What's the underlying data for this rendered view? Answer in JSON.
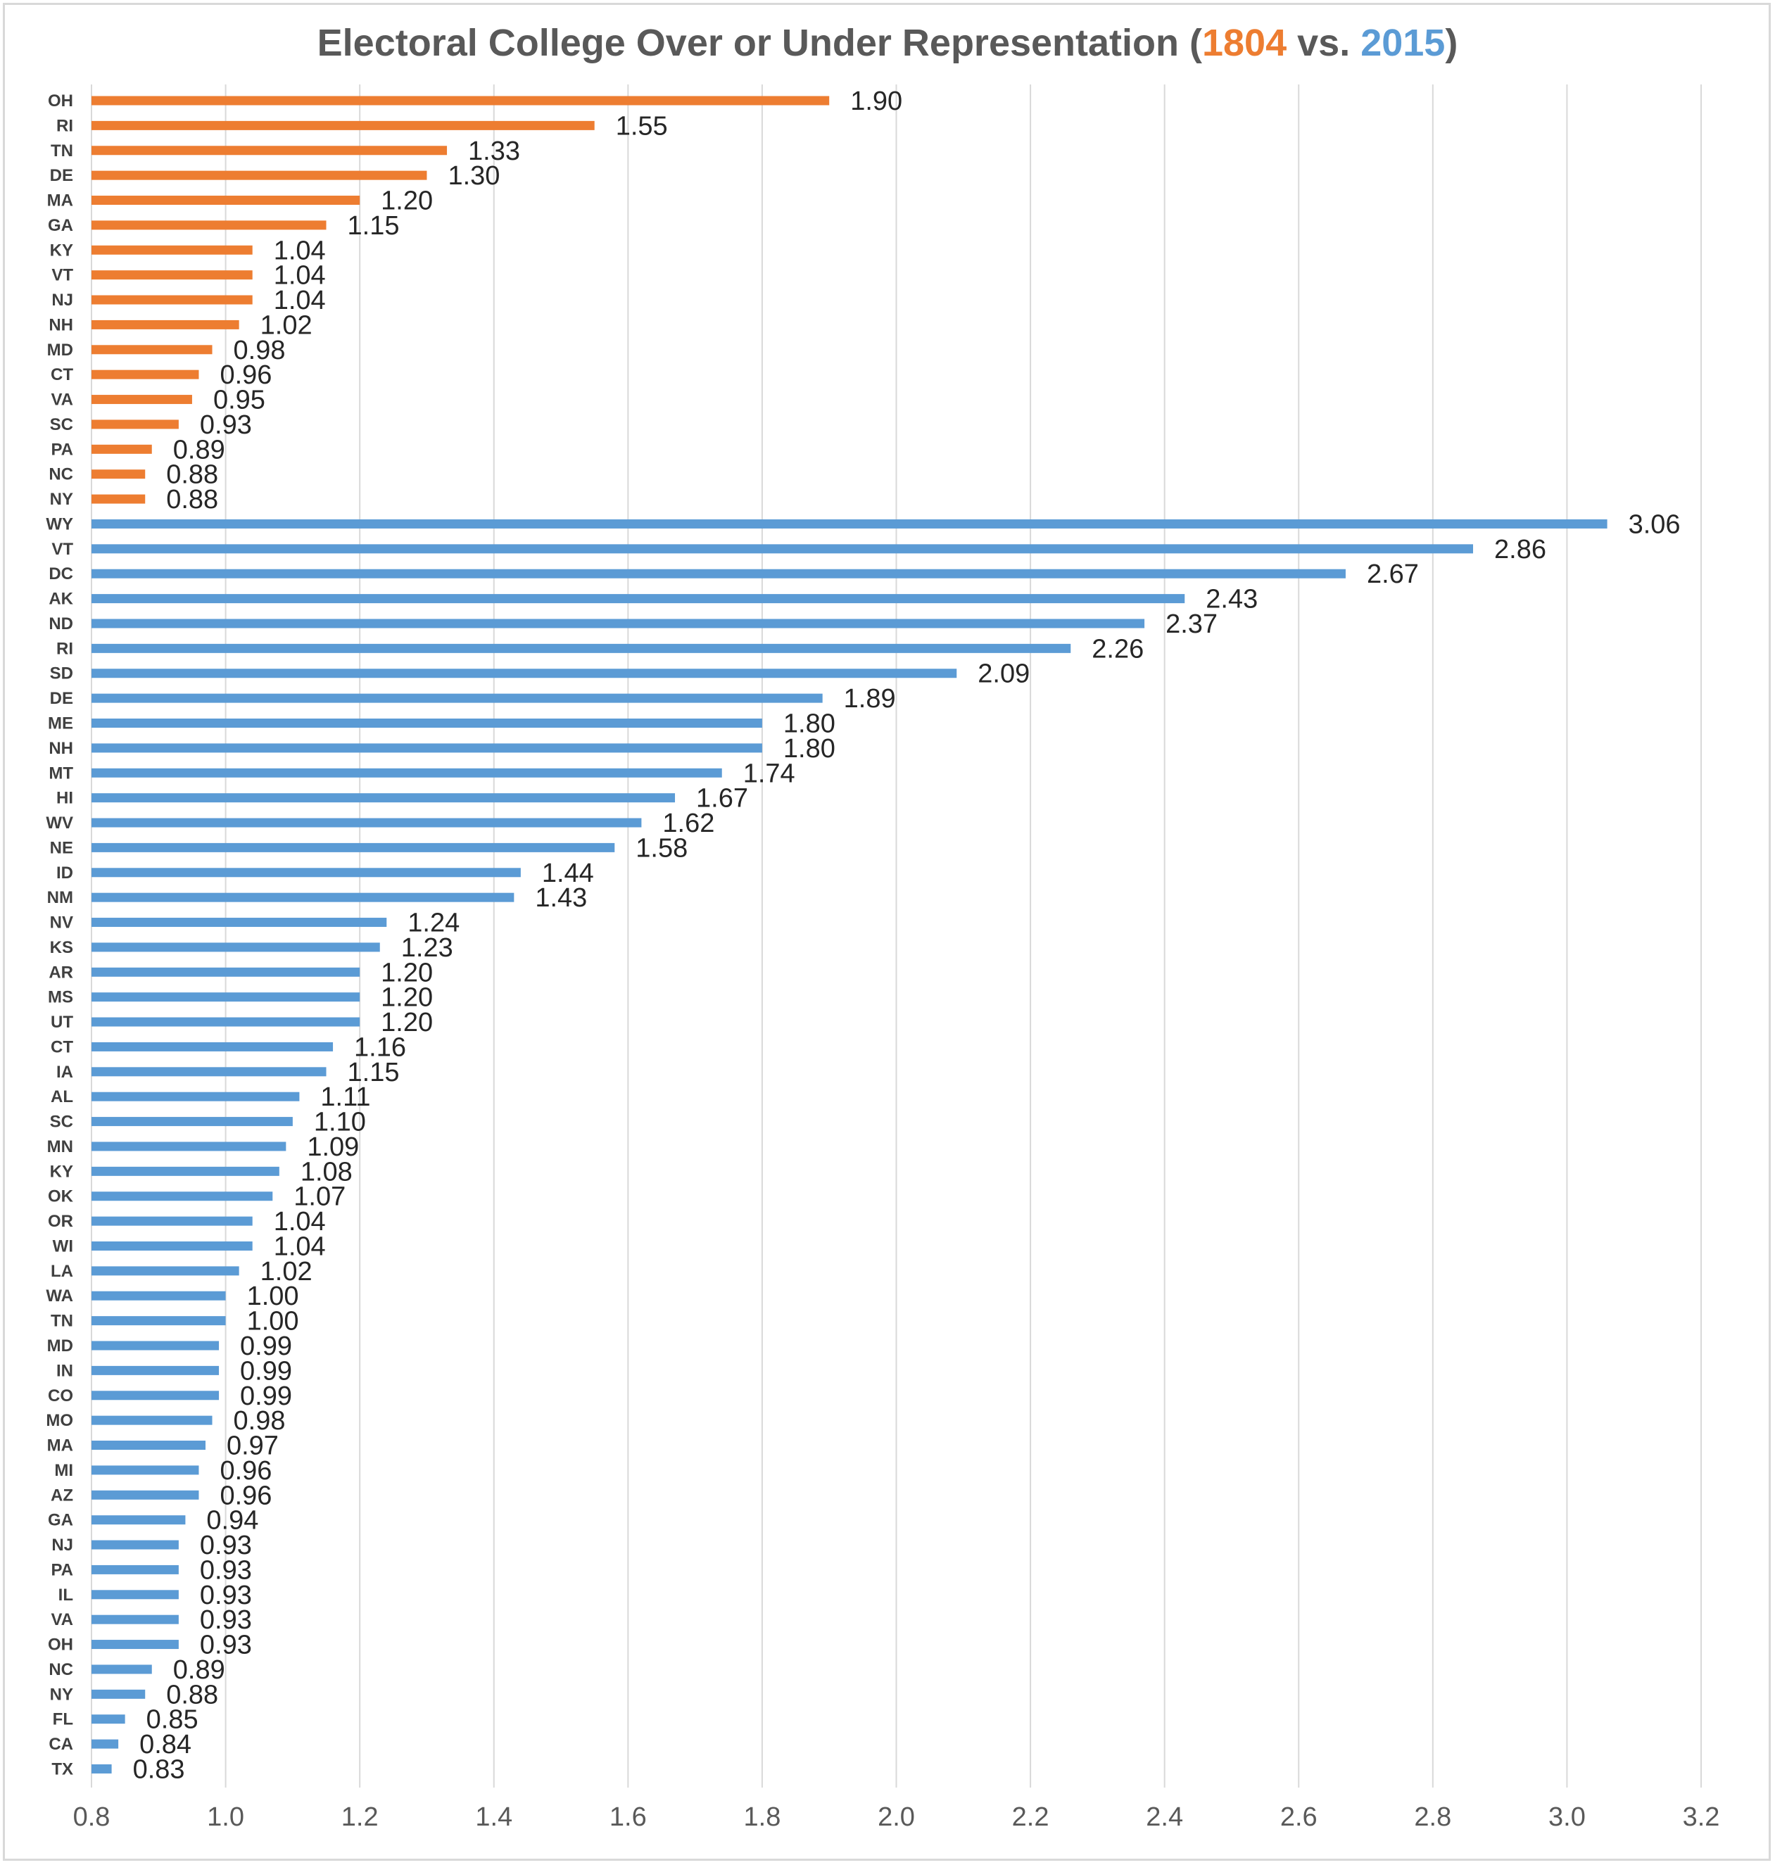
{
  "chart_data": {
    "type": "bar",
    "orientation": "horizontal",
    "title": {
      "prefix": "Electoral College Over or Under Representation (",
      "year1": "1804",
      "middle": " vs. ",
      "year2": "2015",
      "suffix": ")"
    },
    "xlim": [
      0.8,
      3.2
    ],
    "x_ticks": [
      "0.8",
      "1.0",
      "1.2",
      "1.4",
      "1.6",
      "1.8",
      "2.0",
      "2.2",
      "2.4",
      "2.6",
      "2.8",
      "3.0",
      "3.2"
    ],
    "grid": "vertical",
    "colors": {
      "1804": "#ed7d31",
      "2015": "#5b9bd5",
      "title": "#595959"
    },
    "series": [
      {
        "year": "1804",
        "categories": [
          "OH",
          "RI",
          "TN",
          "DE",
          "MA",
          "GA",
          "KY",
          "VT",
          "NJ",
          "NH",
          "MD",
          "CT",
          "VA",
          "SC",
          "PA",
          "NC",
          "NY"
        ],
        "values": [
          1.9,
          1.55,
          1.33,
          1.3,
          1.2,
          1.15,
          1.04,
          1.04,
          1.04,
          1.02,
          0.98,
          0.96,
          0.95,
          0.93,
          0.89,
          0.88,
          0.88
        ],
        "labels": [
          "1.90",
          "1.55",
          "1.33",
          "1.30",
          "1.20",
          "1.15",
          "1.04",
          "1.04",
          "1.04",
          "1.02",
          "0.98",
          "0.96",
          "0.95",
          "0.93",
          "0.89",
          "0.88",
          "0.88"
        ]
      },
      {
        "year": "2015",
        "categories": [
          "WY",
          "VT",
          "DC",
          "AK",
          "ND",
          "RI",
          "SD",
          "DE",
          "ME",
          "NH",
          "MT",
          "HI",
          "WV",
          "NE",
          "ID",
          "NM",
          "NV",
          "KS",
          "AR",
          "MS",
          "UT",
          "CT",
          "IA",
          "AL",
          "SC",
          "MN",
          "KY",
          "OK",
          "OR",
          "WI",
          "LA",
          "WA",
          "TN",
          "MD",
          "IN",
          "CO",
          "MO",
          "MA",
          "MI",
          "AZ",
          "GA",
          "NJ",
          "PA",
          "IL",
          "VA",
          "OH",
          "NC",
          "NY",
          "FL",
          "CA",
          "TX"
        ],
        "values": [
          3.06,
          2.86,
          2.67,
          2.43,
          2.37,
          2.26,
          2.09,
          1.89,
          1.8,
          1.8,
          1.74,
          1.67,
          1.62,
          1.58,
          1.44,
          1.43,
          1.24,
          1.23,
          1.2,
          1.2,
          1.2,
          1.16,
          1.15,
          1.11,
          1.1,
          1.09,
          1.08,
          1.07,
          1.04,
          1.04,
          1.02,
          1.0,
          1.0,
          0.99,
          0.99,
          0.99,
          0.98,
          0.97,
          0.96,
          0.96,
          0.94,
          0.93,
          0.93,
          0.93,
          0.93,
          0.93,
          0.89,
          0.88,
          0.85,
          0.84,
          0.83
        ],
        "labels": [
          "3.06",
          "2.86",
          "2.67",
          "2.43",
          "2.37",
          "2.26",
          "2.09",
          "1.89",
          "1.80",
          "1.80",
          "1.74",
          "1.67",
          "1.62",
          "1.58",
          "1.44",
          "1.43",
          "1.24",
          "1.23",
          "1.20",
          "1.20",
          "1.20",
          "1.16",
          "1.15",
          "1.11",
          "1.10",
          "1.09",
          "1.08",
          "1.07",
          "1.04",
          "1.04",
          "1.02",
          "1.00",
          "1.00",
          "0.99",
          "0.99",
          "0.99",
          "0.98",
          "0.97",
          "0.96",
          "0.96",
          "0.94",
          "0.93",
          "0.93",
          "0.93",
          "0.93",
          "0.93",
          "0.89",
          "0.88",
          "0.85",
          "0.84",
          "0.83"
        ]
      }
    ]
  }
}
